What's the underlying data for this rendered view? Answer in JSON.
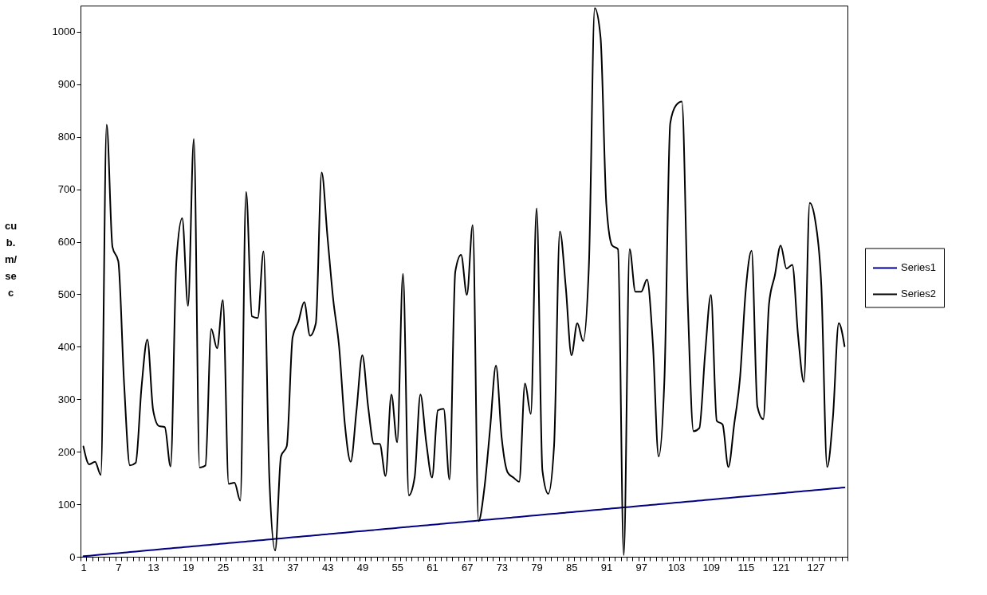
{
  "chart_data": {
    "type": "line",
    "ylabel": "cub. m/sec",
    "categories": [
      "1",
      null,
      null,
      null,
      null,
      null,
      "7",
      null,
      null,
      null,
      null,
      null,
      "13",
      null,
      null,
      null,
      null,
      null,
      "19",
      null,
      null,
      null,
      null,
      null,
      "25",
      null,
      null,
      null,
      null,
      null,
      "31",
      null,
      null,
      null,
      null,
      null,
      "37",
      null,
      null,
      null,
      null,
      null,
      "43",
      null,
      null,
      null,
      null,
      null,
      "49",
      null,
      null,
      null,
      null,
      null,
      "55",
      null,
      null,
      null,
      null,
      null,
      "61",
      null,
      null,
      null,
      null,
      null,
      "67",
      null,
      null,
      null,
      null,
      null,
      "73",
      null,
      null,
      null,
      null,
      null,
      "79",
      null,
      null,
      null,
      null,
      null,
      "85",
      null,
      null,
      null,
      null,
      null,
      "91",
      null,
      null,
      null,
      null,
      null,
      "97",
      null,
      null,
      null,
      null,
      null,
      "103",
      null,
      null,
      null,
      null,
      null,
      "109",
      null,
      null,
      null,
      null,
      null,
      "115",
      null,
      null,
      null,
      null,
      null,
      "121",
      null,
      null,
      null,
      null,
      null,
      "127",
      null,
      null,
      null,
      null,
      null
    ],
    "series": [
      {
        "name": "Series1",
        "color": "#000080",
        "values": [
          1,
          2,
          3,
          4,
          5,
          6,
          7,
          8,
          9,
          10,
          11,
          12,
          13,
          14,
          15,
          16,
          17,
          18,
          19,
          20,
          21,
          22,
          23,
          24,
          25,
          26,
          27,
          28,
          29,
          30,
          31,
          32,
          33,
          34,
          35,
          36,
          37,
          38,
          39,
          40,
          41,
          42,
          43,
          44,
          45,
          46,
          47,
          48,
          49,
          50,
          51,
          52,
          53,
          54,
          55,
          56,
          57,
          58,
          59,
          60,
          61,
          62,
          63,
          64,
          65,
          66,
          67,
          68,
          69,
          70,
          71,
          72,
          73,
          74,
          75,
          76,
          77,
          78,
          79,
          80,
          81,
          82,
          83,
          84,
          85,
          86,
          87,
          88,
          89,
          90,
          91,
          92,
          93,
          94,
          95,
          96,
          97,
          98,
          99,
          100,
          101,
          102,
          103,
          104,
          105,
          106,
          107,
          108,
          109,
          110,
          111,
          112,
          113,
          114,
          115,
          116,
          117,
          118,
          119,
          120,
          121,
          122,
          123,
          124,
          125,
          126,
          127,
          128,
          129,
          130,
          131,
          132
        ]
      },
      {
        "name": "Series2",
        "color": "#000000",
        "values": [
          210,
          176,
          181,
          156,
          823,
          590,
          563,
          330,
          174,
          179,
          323,
          414,
          279,
          249,
          247,
          172,
          563,
          645,
          478,
          796,
          170,
          174,
          434,
          397,
          489,
          139,
          141,
          107,
          695,
          458,
          455,
          582,
          150,
          12,
          191,
          211,
          418,
          448,
          485,
          421,
          445,
          732,
          610,
          489,
          401,
          252,
          181,
          279,
          384,
          286,
          215,
          215,
          154,
          309,
          218,
          539,
          117,
          151,
          309,
          218,
          151,
          279,
          282,
          147,
          543,
          575,
          499,
          632,
          68,
          130,
          245,
          364,
          225,
          161,
          151,
          143,
          330,
          272,
          664,
          164,
          120,
          211,
          620,
          516,
          384,
          445,
          411,
          556,
          1045,
          990,
          671,
          593,
          586,
          3,
          586,
          505,
          505,
          528,
          407,
          191,
          340,
          826,
          860,
          867,
          489,
          239,
          245,
          387,
          499,
          259,
          252,
          171,
          252,
          340,
          509,
          583,
          286,
          262,
          482,
          536,
          593,
          549,
          556,
          421,
          333,
          674,
          637,
          516,
          171,
          266,
          445,
          401
        ]
      }
    ],
    "ylim": [
      0,
      1050
    ],
    "yticks": [
      0,
      100,
      200,
      300,
      400,
      500,
      600,
      700,
      800,
      900,
      1000
    ],
    "grid": false,
    "legend": "right",
    "marker": "none",
    "line_style": "solid"
  }
}
